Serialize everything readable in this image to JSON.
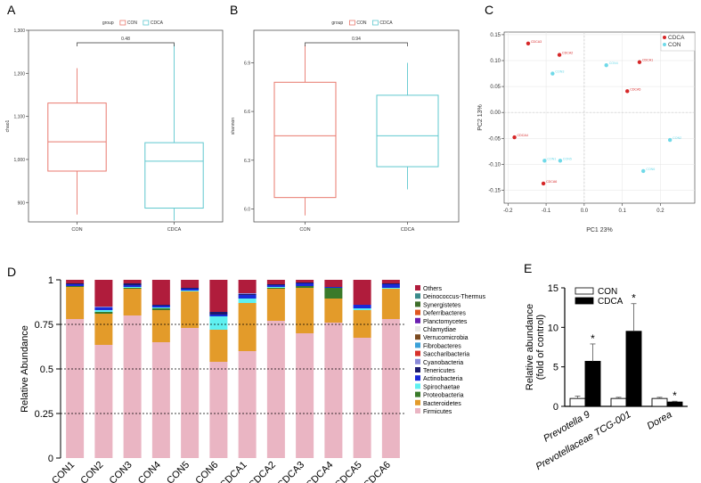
{
  "colors": {
    "con_box": "#e8796e",
    "cdca_box": "#5fc8cf",
    "cdca_point": "#d62728",
    "con_point": "#6fd9e8",
    "bar_con": "#ffffff",
    "bar_cdca": "#000000",
    "phyla": {
      "Others": "#b01c3c",
      "Deinococcus-Thermus": "#3a8a8a",
      "Synergistetes": "#3f6e2a",
      "Deferribacteres": "#e0561e",
      "Planctomycetes": "#6a1fb0",
      "Chlamydiae": "#e8e8e8",
      "Verrucomicrobia": "#7a4a20",
      "Fibrobacteres": "#3aa0d8",
      "Saccharibacteria": "#d8322a",
      "Cyanobacteria": "#8a8ad8",
      "Tenericutes": "#1a1a6e",
      "Actinobacteria": "#1a2ad8",
      "Spirochaetae": "#5ff0f0",
      "Proteobacteria": "#3a7a2a",
      "Bacteroidetes": "#e39b2a",
      "Firmicutes": "#eab5c3"
    }
  },
  "chart_data": [
    {
      "panel": "A",
      "type": "box",
      "legend_title": "group",
      "legend": [
        "CON",
        "CDCA"
      ],
      "ylabel": "chao1",
      "categories": [
        "CON",
        "CDCA"
      ],
      "ylim": [
        855,
        1300
      ],
      "yticks": [
        900,
        1000,
        1100,
        1200,
        1300
      ],
      "ytick_labels": [
        "900",
        "1,000",
        "1,100",
        "1,200",
        "1,300"
      ],
      "boxes": [
        {
          "name": "CON",
          "min": 872,
          "q1": 973,
          "median": 1041,
          "q3": 1131,
          "max": 1212
        },
        {
          "name": "CDCA",
          "min": 858,
          "q1": 887,
          "median": 996,
          "q3": 1039,
          "max": 1268
        }
      ],
      "p_value": "0.48"
    },
    {
      "panel": "B",
      "type": "box",
      "legend_title": "group",
      "legend": [
        "CON",
        "CDCA"
      ],
      "ylabel": "shannon",
      "categories": [
        "CON",
        "CDCA"
      ],
      "ylim": [
        5.92,
        7.1
      ],
      "yticks": [
        6.0,
        6.3,
        6.6,
        6.9
      ],
      "ytick_labels": [
        "6.0",
        "6.3",
        "6.6",
        "6.9"
      ],
      "boxes": [
        {
          "name": "CON",
          "min": 5.96,
          "q1": 6.07,
          "median": 6.45,
          "q3": 6.78,
          "max": 7.01
        },
        {
          "name": "CDCA",
          "min": 6.12,
          "q1": 6.26,
          "median": 6.45,
          "q3": 6.7,
          "max": 6.9
        }
      ],
      "p_value": "0.94"
    },
    {
      "panel": "C",
      "type": "scatter",
      "xlabel": "PC1 23%",
      "ylabel": "PC2 13%",
      "xlim": [
        -0.21,
        0.29
      ],
      "ylim": [
        -0.175,
        0.155
      ],
      "xticks": [
        -0.2,
        -0.1,
        0.0,
        0.1,
        0.2
      ],
      "xtick_labels": [
        "-0.2",
        "-0.1",
        "0.0",
        "0.1",
        "0.2"
      ],
      "yticks": [
        -0.15,
        -0.1,
        -0.05,
        0.0,
        0.05,
        0.1,
        0.15
      ],
      "ytick_labels": [
        "-0.15",
        "-0.10",
        "-0.05",
        "0.00",
        "0.05",
        "0.10",
        "0.15"
      ],
      "legend": [
        "CDCA",
        "CON"
      ],
      "series": [
        {
          "name": "CDCA",
          "points": [
            {
              "label": "CDCA3",
              "x": -0.147,
              "y": 0.133
            },
            {
              "label": "CDCA2",
              "x": -0.065,
              "y": 0.111
            },
            {
              "label": "CDCA1",
              "x": 0.145,
              "y": 0.097
            },
            {
              "label": "CDCA5",
              "x": 0.113,
              "y": 0.041
            },
            {
              "label": "CDCA4",
              "x": -0.183,
              "y": -0.048
            },
            {
              "label": "CDCA6",
              "x": -0.107,
              "y": -0.137
            }
          ]
        },
        {
          "name": "CON",
          "points": [
            {
              "label": "CON4",
              "x": 0.058,
              "y": 0.091
            },
            {
              "label": "CON3",
              "x": -0.083,
              "y": 0.075
            },
            {
              "label": "CON2",
              "x": 0.225,
              "y": -0.053
            },
            {
              "label": "CON1",
              "x": -0.104,
              "y": -0.093
            },
            {
              "label": "CON5",
              "x": -0.063,
              "y": -0.093
            },
            {
              "label": "CON6",
              "x": 0.155,
              "y": -0.113
            }
          ]
        }
      ]
    },
    {
      "panel": "D",
      "type": "stacked-bar",
      "ylabel": "Relative Abundance",
      "ylim": [
        0,
        1
      ],
      "yticks": [
        0,
        0.25,
        0.5,
        0.75,
        1
      ],
      "ytick_labels": [
        "0",
        "0.25",
        "0.5",
        "0.75",
        "1"
      ],
      "categories": [
        "CON1",
        "CON2",
        "CON3",
        "CON4",
        "CON5",
        "CON6",
        "CDCA1",
        "CDCA2",
        "CDCA3",
        "CDCA4",
        "CDCA5",
        "CDCA6"
      ],
      "stack_order": [
        "Firmicutes",
        "Bacteroidetes",
        "Proteobacteria",
        "Spirochaetae",
        "Actinobacteria",
        "Tenericutes",
        "Cyanobacteria",
        "Saccharibacteria",
        "Fibrobacteres",
        "Verrucomicrobia",
        "Chlamydiae",
        "Planctomycetes",
        "Deferribacteres",
        "Synergistetes",
        "Deinococcus-Thermus",
        "Others"
      ],
      "legend_order": [
        "Others",
        "Deinococcus-Thermus",
        "Synergistetes",
        "Deferribacteres",
        "Planctomycetes",
        "Chlamydiae",
        "Verrucomicrobia",
        "Fibrobacteres",
        "Saccharibacteria",
        "Cyanobacteria",
        "Tenericutes",
        "Actinobacteria",
        "Spirochaetae",
        "Proteobacteria",
        "Bacteroidetes",
        "Firmicutes"
      ],
      "samples": [
        {
          "Firmicutes": 0.78,
          "Bacteroidetes": 0.18,
          "Proteobacteria": 0.005,
          "Actinobacteria": 0.01,
          "Tenericutes": 0.005,
          "Others": 0.02
        },
        {
          "Firmicutes": 0.635,
          "Bacteroidetes": 0.175,
          "Proteobacteria": 0.01,
          "Spirochaetae": 0.01,
          "Actinobacteria": 0.015,
          "Cyanobacteria": 0.005,
          "Others": 0.15
        },
        {
          "Firmicutes": 0.8,
          "Bacteroidetes": 0.15,
          "Proteobacteria": 0.005,
          "Spirochaetae": 0.005,
          "Actinobacteria": 0.01,
          "Tenericutes": 0.01,
          "Others": 0.02
        },
        {
          "Firmicutes": 0.65,
          "Bacteroidetes": 0.18,
          "Proteobacteria": 0.01,
          "Spirochaetae": 0.005,
          "Actinobacteria": 0.01,
          "Tenericutes": 0.005,
          "Others": 0.14
        },
        {
          "Firmicutes": 0.73,
          "Bacteroidetes": 0.205,
          "Spirochaetae": 0.005,
          "Actinobacteria": 0.01,
          "Tenericutes": 0.005,
          "Others": 0.045
        },
        {
          "Firmicutes": 0.54,
          "Bacteroidetes": 0.18,
          "Spirochaetae": 0.075,
          "Actinobacteria": 0.01,
          "Tenericutes": 0.015,
          "Others": 0.18
        },
        {
          "Firmicutes": 0.6,
          "Bacteroidetes": 0.27,
          "Spirochaetae": 0.025,
          "Actinobacteria": 0.02,
          "Cyanobacteria": 0.005,
          "Tenericutes": 0.005,
          "Others": 0.075
        },
        {
          "Firmicutes": 0.77,
          "Bacteroidetes": 0.18,
          "Proteobacteria": 0.005,
          "Spirochaetae": 0.005,
          "Actinobacteria": 0.01,
          "Tenericutes": 0.005,
          "Others": 0.025
        },
        {
          "Firmicutes": 0.7,
          "Bacteroidetes": 0.255,
          "Proteobacteria": 0.01,
          "Actinobacteria": 0.015,
          "Tenericutes": 0.005,
          "Others": 0.015
        },
        {
          "Firmicutes": 0.76,
          "Bacteroidetes": 0.135,
          "Proteobacteria": 0.06,
          "Actinobacteria": 0.005,
          "Others": 0.04
        },
        {
          "Firmicutes": 0.675,
          "Bacteroidetes": 0.155,
          "Spirochaetae": 0.01,
          "Actinobacteria": 0.02,
          "Others": 0.14
        },
        {
          "Firmicutes": 0.78,
          "Bacteroidetes": 0.17,
          "Spirochaetae": 0.005,
          "Actinobacteria": 0.02,
          "Tenericutes": 0.005,
          "Others": 0.02
        }
      ]
    },
    {
      "panel": "E",
      "type": "bar",
      "ylabel": "Relative abundance",
      "ylabel2": "(fold of control)",
      "ylim": [
        0,
        15
      ],
      "yticks": [
        0,
        5,
        10,
        15
      ],
      "ytick_labels": [
        "0",
        "5",
        "10",
        "15"
      ],
      "categories": [
        "Prevotella 9",
        "Prevotellaceae TCG-001",
        "Dorea"
      ],
      "series": [
        {
          "name": "CON",
          "values": [
            1.0,
            1.0,
            1.0
          ],
          "errors": [
            0.3,
            0.15,
            0.15
          ]
        },
        {
          "name": "CDCA",
          "values": [
            5.7,
            9.5,
            0.55
          ],
          "errors": [
            2.2,
            3.5,
            0.1
          ]
        }
      ],
      "significance": [
        "*",
        "*",
        "*"
      ]
    }
  ],
  "panel_labels": [
    "A",
    "B",
    "C",
    "D",
    "E"
  ]
}
